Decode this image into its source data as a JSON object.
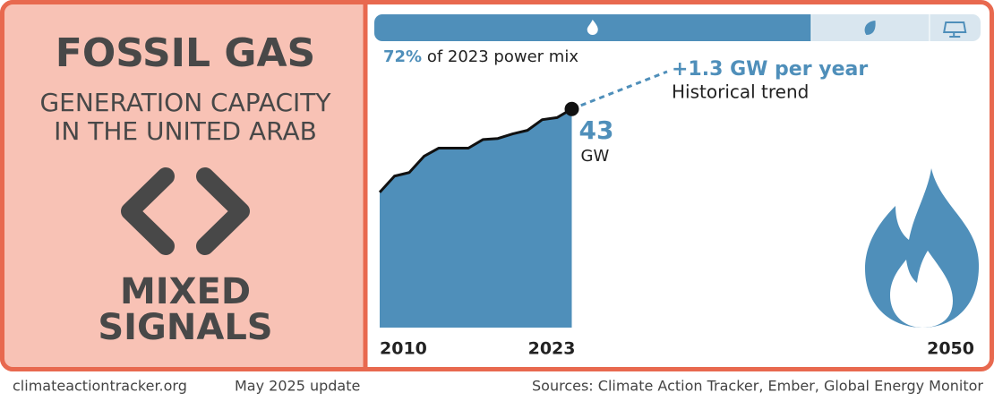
{
  "title": "FOSSIL GAS",
  "subtitle": [
    "GENERATION CAPACITY",
    "IN THE UNITED ARAB"
  ],
  "verdict": [
    "MIXED",
    "SIGNALS"
  ],
  "footer": {
    "site": "climateactiontracker.org",
    "update": "May 2025 update",
    "sources": "Sources: Climate Action Tracker, Ember, Global Energy Monitor"
  },
  "chart_data": [
    {
      "type": "stacked-bar",
      "values": [
        72,
        19.5,
        8.5
      ],
      "value_labels": [
        "72%",
        null,
        null
      ],
      "colors": [
        "#4f8fba",
        "#d9e6ef",
        "#d9e6ef"
      ],
      "caption": "of 2023 power mix"
    },
    {
      "type": "area",
      "x": [
        2010,
        2011,
        2012,
        2013,
        2014,
        2015,
        2016,
        2017,
        2018,
        2019,
        2020,
        2021,
        2022,
        2023
      ],
      "values": [
        26.6,
        29.8,
        30.5,
        33.7,
        35.3,
        35.3,
        35.3,
        37.0,
        37.2,
        38.1,
        38.8,
        40.9,
        41.3,
        43
      ],
      "color": "#4f8fba",
      "unit": "GW",
      "xlim": [
        2010,
        2050
      ],
      "xticks": [
        2010,
        2023,
        2050
      ],
      "ylim": [
        0,
        50
      ],
      "annotation": {
        "title": "+1.3 GW per year",
        "text": "Historical trend"
      }
    }
  ]
}
